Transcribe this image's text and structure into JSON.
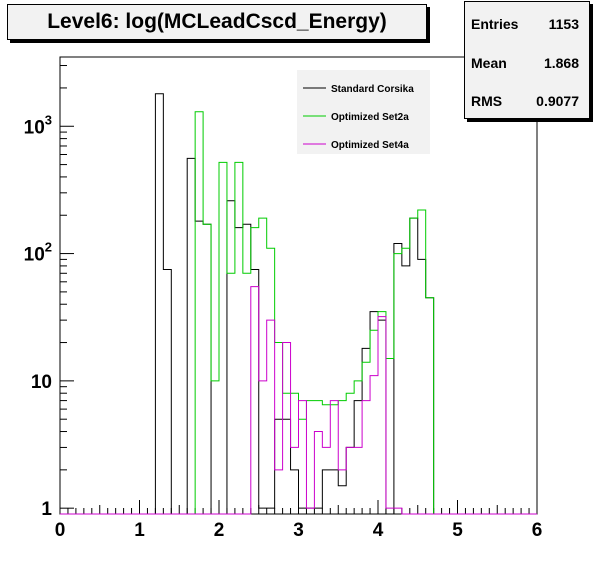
{
  "title": "Level6:  log(MCLeadCscd_Energy)",
  "stats": [
    {
      "label": "Entries",
      "value": "1153"
    },
    {
      "label": "Mean",
      "value": "1.868"
    },
    {
      "label": "RMS",
      "value": "0.9077"
    }
  ],
  "colors": {
    "corsika": "#000000",
    "set2a": "#00cc00",
    "set4a": "#cc00cc",
    "frame": "#000000"
  },
  "chart_data": {
    "type": "histogram",
    "title": "Level6:  log(MCLeadCscd_Energy)",
    "xlabel": "",
    "ylabel": "",
    "xlim": [
      0,
      6
    ],
    "ylim": [
      0.9,
      3500
    ],
    "yscale": "log",
    "bin_width": 0.1,
    "bin_start": 0,
    "x_ticks": [
      0,
      1,
      2,
      3,
      4,
      5,
      6
    ],
    "x_tick_labels": [
      "0",
      "1",
      "2",
      "3",
      "4",
      "5",
      "6"
    ],
    "y_ticks": [
      1,
      10,
      100,
      1000
    ],
    "y_tick_labels": [
      "1",
      "10",
      "10²",
      "10³"
    ],
    "legend_position": "top-right",
    "series": [
      {
        "name": "Standard Corsika",
        "color": "#000000",
        "values": [
          0,
          0,
          0,
          0,
          0,
          0,
          0,
          0,
          0,
          0,
          0,
          0,
          1800,
          75,
          0,
          0,
          560,
          180,
          170,
          0,
          0,
          260,
          160,
          170,
          75,
          1,
          1,
          5,
          5,
          2,
          1,
          1,
          1,
          2,
          2,
          1.5,
          3,
          7,
          18,
          35,
          30,
          0,
          120,
          80,
          190,
          90,
          45,
          0,
          0,
          0,
          0,
          0,
          0,
          0,
          0,
          0,
          0,
          0,
          0,
          0
        ]
      },
      {
        "name": "Optimized Set2a",
        "color": "#00cc00",
        "values": [
          0,
          0,
          0,
          0,
          0,
          0,
          0,
          0,
          0,
          0,
          0,
          0,
          0,
          0,
          0,
          0,
          0,
          1300,
          170,
          10,
          520,
          70,
          520,
          70,
          160,
          190,
          110,
          20,
          8,
          8,
          5,
          7,
          7,
          6.5,
          6.5,
          7,
          8,
          10,
          14,
          25,
          35,
          15,
          100,
          110,
          190,
          220,
          45,
          0,
          0,
          0,
          0,
          0,
          0,
          0,
          0,
          0,
          0,
          0,
          0,
          0
        ]
      },
      {
        "name": "Optimized Set4a",
        "color": "#cc00cc",
        "values": [
          0,
          0,
          0,
          0,
          0,
          0,
          0,
          0,
          0,
          0,
          0,
          0,
          0,
          0,
          0,
          0,
          0,
          0,
          0,
          0,
          0,
          0,
          0,
          0,
          55,
          10,
          30,
          2,
          20,
          3,
          7,
          1,
          4,
          3,
          7,
          2,
          3,
          3,
          7,
          11,
          32,
          1,
          1,
          0,
          0,
          0,
          0,
          0,
          0,
          0,
          0,
          0,
          0,
          0,
          0,
          0,
          0,
          0,
          0,
          0
        ]
      }
    ]
  }
}
